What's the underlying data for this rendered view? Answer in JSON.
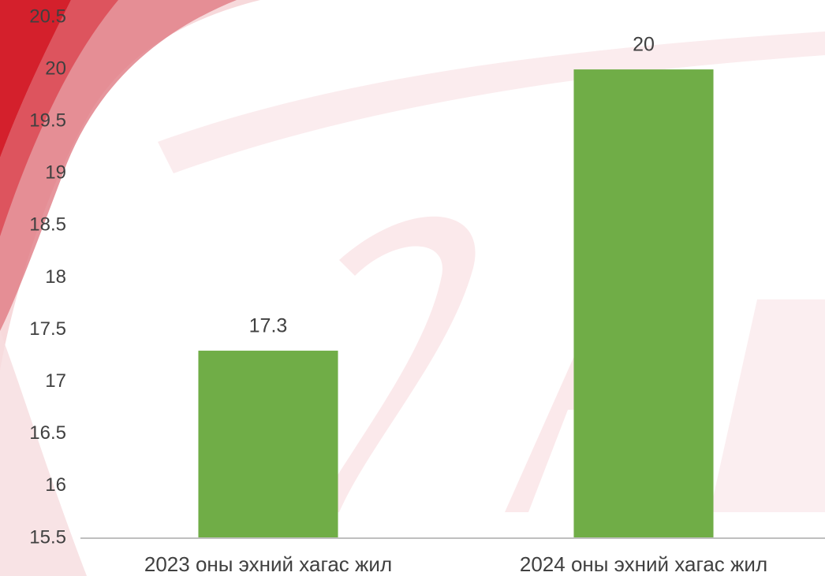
{
  "chart_data": {
    "type": "bar",
    "categories": [
      "2023 оны эхний хагас жил",
      "2024 оны эхний хагас жил"
    ],
    "values": [
      17.3,
      20
    ],
    "color": "#70ad47",
    "ylim": [
      15.5,
      20.5
    ],
    "yticks": [
      15.5,
      16,
      16.5,
      17,
      17.5,
      18,
      18.5,
      19,
      19.5,
      20,
      20.5
    ],
    "grid": false
  }
}
